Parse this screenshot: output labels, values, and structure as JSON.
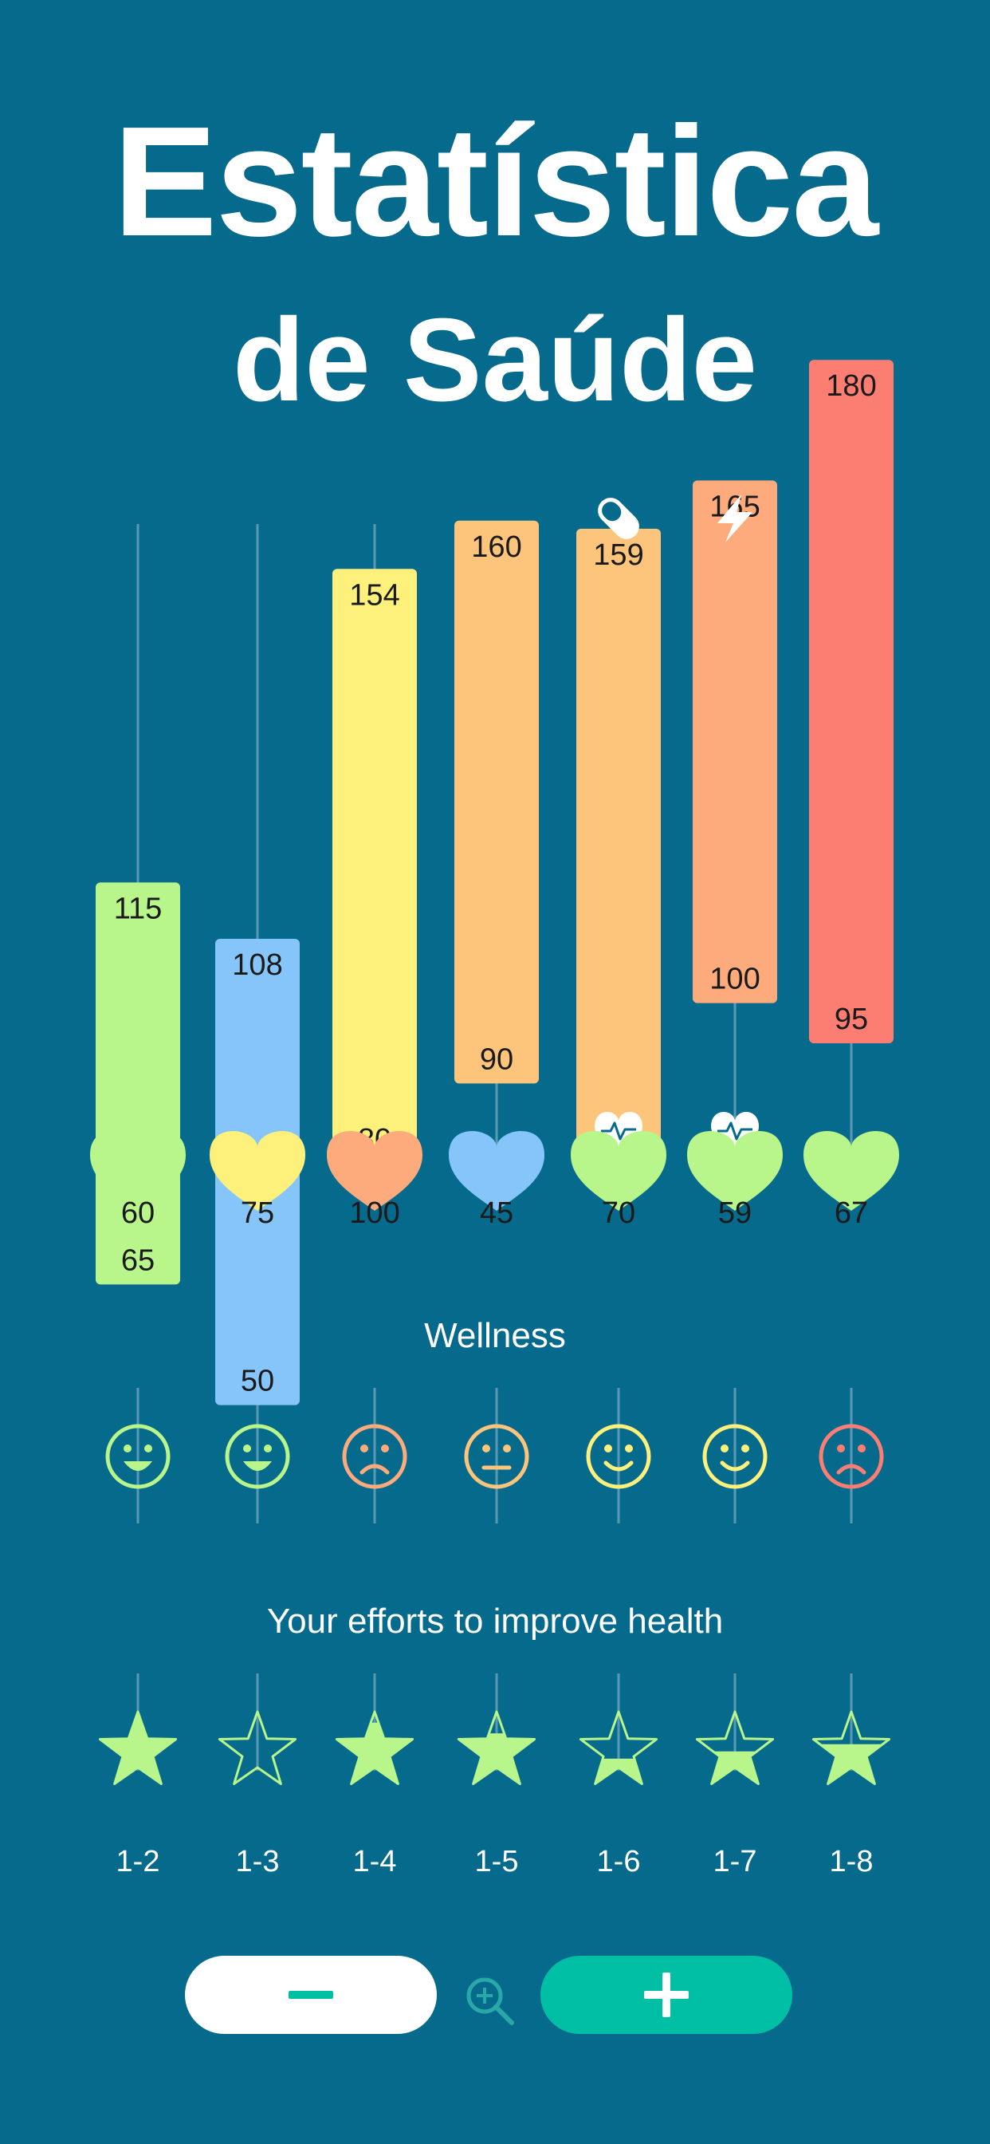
{
  "title": {
    "line1": "Estatística",
    "line2": "de Saúde"
  },
  "chart_data": {
    "type": "bar",
    "categories": [
      "1-2",
      "1-3",
      "1-4",
      "1-5",
      "1-6",
      "1-7",
      "1-8"
    ],
    "series": [
      {
        "name": "",
        "high": [
          115,
          108,
          154,
          160,
          159,
          165,
          180
        ],
        "low": [
          65,
          50,
          80,
          90,
          80,
          100,
          95
        ]
      }
    ],
    "bar_colors": [
      "#b8f58a",
      "#86c5fa",
      "#fdf17c",
      "#fdc47c",
      "#fdc47c",
      "#fdab7c",
      "#fc7e73"
    ],
    "heart_values": [
      60,
      75,
      100,
      45,
      70,
      59,
      67
    ],
    "heart_colors": [
      "#b8f58a",
      "#fdf17c",
      "#fdab7c",
      "#86c5fa",
      "#b8f58a",
      "#b8f58a",
      "#b8f58a"
    ],
    "ylim": [
      40,
      190
    ],
    "grid": true
  },
  "markers": {
    "pill_icon_column": "1-6",
    "bolt_icon_column": "1-7",
    "heartbeat_icon_columns": [
      "1-6",
      "1-7"
    ]
  },
  "wellness": {
    "label": "Wellness",
    "moods": [
      "happy",
      "happy",
      "sad",
      "neutral",
      "smile",
      "smile",
      "sad"
    ],
    "colors": [
      "#b8f58a",
      "#b8f58a",
      "#fdab7c",
      "#fdc47c",
      "#fdf17c",
      "#fdf17c",
      "#fc7e73"
    ]
  },
  "efforts": {
    "label": "Your efforts to improve health",
    "star_fill": [
      1.0,
      0.0,
      0.85,
      0.7,
      0.35,
      0.45,
      0.55
    ],
    "star_color": "#b8f58a"
  },
  "controls": {
    "zoom_out_icon": "minus-icon",
    "zoom_in_icon": "plus-icon",
    "zoom_icon": "zoom-in-icon"
  },
  "colors": {
    "background": "#066a8c",
    "accent": "#00bfa5",
    "gridline": "#5a99b4"
  }
}
